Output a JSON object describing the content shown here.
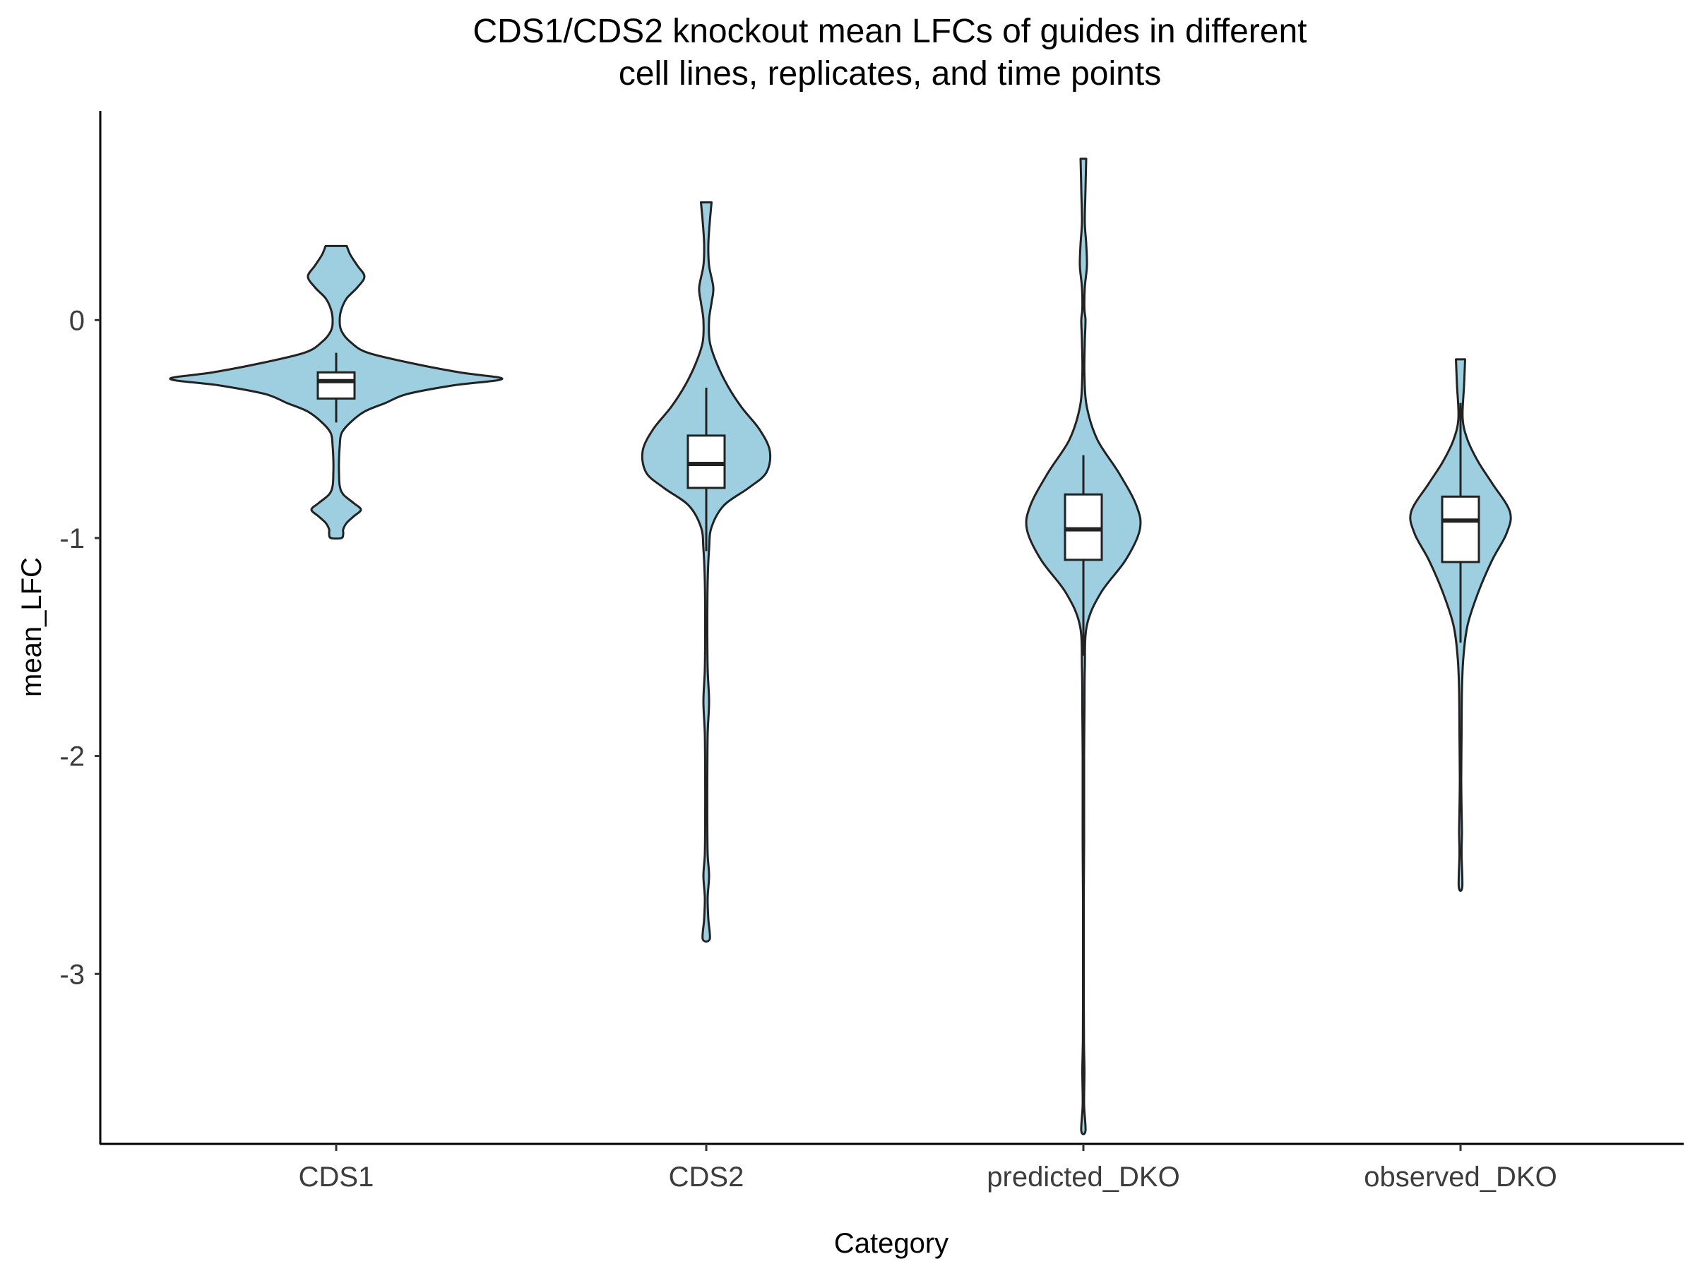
{
  "chart_data": {
    "type": "violin",
    "title_lines": [
      "CDS1/CDS2 knockout mean LFCs of guides in different",
      "cell lines, replicates, and time points"
    ],
    "xlabel": "Category",
    "ylabel": "mean_LFC",
    "ylim": [
      -3.78,
      0.96
    ],
    "y_ticks": [
      0,
      -1,
      -2,
      -3
    ],
    "y_tick_labels": [
      "0",
      "-1",
      "-2",
      "-3"
    ],
    "categories": [
      "CDS1",
      "CDS2",
      "predicted_DKO",
      "observed_DKO"
    ],
    "fill_color": "#9ECFE0",
    "line_color": "#222222",
    "grid": false,
    "legend": false,
    "violins": [
      {
        "category": "CDS1",
        "profile": [
          [
            0.34,
            0.03
          ],
          [
            0.3,
            0.04
          ],
          [
            0.25,
            0.06
          ],
          [
            0.2,
            0.08
          ],
          [
            0.15,
            0.06
          ],
          [
            0.1,
            0.03
          ],
          [
            0.05,
            0.015
          ],
          [
            0.0,
            0.01
          ],
          [
            -0.05,
            0.015
          ],
          [
            -0.1,
            0.04
          ],
          [
            -0.15,
            0.09
          ],
          [
            -0.2,
            0.22
          ],
          [
            -0.24,
            0.35
          ],
          [
            -0.27,
            0.47
          ],
          [
            -0.3,
            0.33
          ],
          [
            -0.34,
            0.2
          ],
          [
            -0.38,
            0.14
          ],
          [
            -0.42,
            0.08
          ],
          [
            -0.47,
            0.04
          ],
          [
            -0.52,
            0.015
          ],
          [
            -0.58,
            0.01
          ],
          [
            -0.64,
            0.008
          ],
          [
            -0.7,
            0.008
          ],
          [
            -0.76,
            0.01
          ],
          [
            -0.8,
            0.02
          ],
          [
            -0.84,
            0.05
          ],
          [
            -0.87,
            0.07
          ],
          [
            -0.9,
            0.05
          ],
          [
            -0.93,
            0.03
          ],
          [
            -0.96,
            0.02
          ],
          [
            -0.98,
            0.02
          ],
          [
            -1.0,
            0.015
          ]
        ],
        "box": {
          "q1": -0.36,
          "median": -0.28,
          "q3": -0.24,
          "whisker_low": -0.47,
          "whisker_high": -0.15
        }
      },
      {
        "category": "CDS2",
        "profile": [
          [
            0.54,
            0.015
          ],
          [
            0.45,
            0.01
          ],
          [
            0.35,
            0.006
          ],
          [
            0.25,
            0.008
          ],
          [
            0.15,
            0.02
          ],
          [
            0.08,
            0.015
          ],
          [
            0.0,
            0.008
          ],
          [
            -0.1,
            0.01
          ],
          [
            -0.2,
            0.03
          ],
          [
            -0.3,
            0.06
          ],
          [
            -0.4,
            0.1
          ],
          [
            -0.5,
            0.15
          ],
          [
            -0.6,
            0.18
          ],
          [
            -0.7,
            0.17
          ],
          [
            -0.77,
            0.12
          ],
          [
            -0.85,
            0.05
          ],
          [
            -0.95,
            0.015
          ],
          [
            -1.05,
            0.008
          ],
          [
            -1.2,
            0.004
          ],
          [
            -1.4,
            0.003
          ],
          [
            -1.6,
            0.004
          ],
          [
            -1.75,
            0.008
          ],
          [
            -1.9,
            0.004
          ],
          [
            -2.1,
            0.003
          ],
          [
            -2.3,
            0.003
          ],
          [
            -2.45,
            0.004
          ],
          [
            -2.55,
            0.008
          ],
          [
            -2.65,
            0.004
          ],
          [
            -2.75,
            0.006
          ],
          [
            -2.84,
            0.01
          ]
        ],
        "box": {
          "q1": -0.77,
          "median": -0.66,
          "q3": -0.53,
          "whisker_low": -1.06,
          "whisker_high": -0.31
        }
      },
      {
        "category": "predicted_DKO",
        "profile": [
          [
            0.74,
            0.008
          ],
          [
            0.6,
            0.006
          ],
          [
            0.45,
            0.004
          ],
          [
            0.35,
            0.008
          ],
          [
            0.25,
            0.01
          ],
          [
            0.15,
            0.004
          ],
          [
            0.05,
            0.003
          ],
          [
            0.0,
            0.006
          ],
          [
            -0.1,
            0.004
          ],
          [
            -0.25,
            0.003
          ],
          [
            -0.4,
            0.01
          ],
          [
            -0.55,
            0.04
          ],
          [
            -0.7,
            0.1
          ],
          [
            -0.85,
            0.15
          ],
          [
            -0.96,
            0.16
          ],
          [
            -1.1,
            0.12
          ],
          [
            -1.25,
            0.05
          ],
          [
            -1.4,
            0.01
          ],
          [
            -1.6,
            0.004
          ],
          [
            -1.8,
            0.003
          ],
          [
            -2.0,
            0.002
          ],
          [
            -2.2,
            0.002
          ],
          [
            -2.4,
            0.002
          ],
          [
            -2.7,
            0.001
          ],
          [
            -3.0,
            0.001
          ],
          [
            -3.3,
            0.0015
          ],
          [
            -3.45,
            0.003
          ],
          [
            -3.6,
            0.002
          ],
          [
            -3.72,
            0.006
          ]
        ],
        "box": {
          "q1": -1.1,
          "median": -0.96,
          "q3": -0.8,
          "whisker_low": -1.54,
          "whisker_high": -0.62
        }
      },
      {
        "category": "observed_DKO",
        "profile": [
          [
            -0.18,
            0.013
          ],
          [
            -0.3,
            0.01
          ],
          [
            -0.45,
            0.006
          ],
          [
            -0.55,
            0.02
          ],
          [
            -0.65,
            0.05
          ],
          [
            -0.75,
            0.09
          ],
          [
            -0.88,
            0.14
          ],
          [
            -0.98,
            0.13
          ],
          [
            -1.1,
            0.09
          ],
          [
            -1.25,
            0.05
          ],
          [
            -1.4,
            0.02
          ],
          [
            -1.55,
            0.008
          ],
          [
            -1.7,
            0.004
          ],
          [
            -1.9,
            0.003
          ],
          [
            -2.1,
            0.002
          ],
          [
            -2.25,
            0.003
          ],
          [
            -2.35,
            0.004
          ],
          [
            -2.45,
            0.003
          ],
          [
            -2.6,
            0.005
          ]
        ],
        "box": {
          "q1": -1.11,
          "median": -0.92,
          "q3": -0.81,
          "whisker_low": -1.48,
          "whisker_high": -0.38
        }
      }
    ]
  }
}
